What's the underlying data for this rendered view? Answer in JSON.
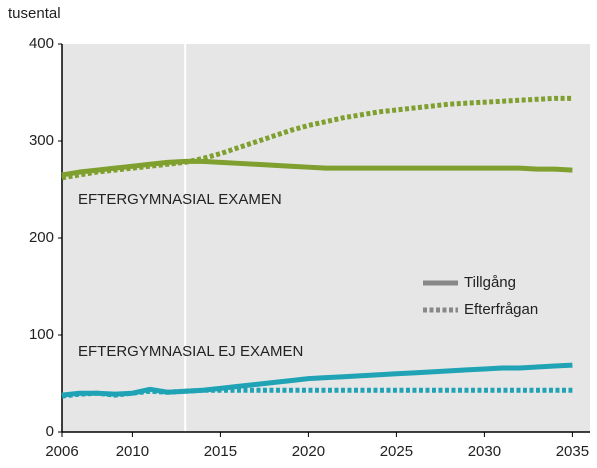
{
  "chart_data": {
    "type": "line",
    "y_label": "tusental",
    "x": [
      2006,
      2007,
      2008,
      2009,
      2010,
      2011,
      2012,
      2013,
      2014,
      2015,
      2016,
      2017,
      2018,
      2019,
      2020,
      2021,
      2022,
      2023,
      2024,
      2025,
      2026,
      2027,
      2028,
      2029,
      2030,
      2031,
      2032,
      2033,
      2034,
      2035
    ],
    "xlim": [
      2006,
      2036
    ],
    "xticks": [
      2006,
      2010,
      2015,
      2020,
      2025,
      2030,
      2035
    ],
    "ylim": [
      0,
      400
    ],
    "yticks": [
      0,
      100,
      200,
      300,
      400
    ],
    "divider_x": 2013,
    "legend": [
      {
        "name": "Tillgång",
        "style": "solid"
      },
      {
        "name": "Efterfrågan",
        "style": "dotted"
      }
    ],
    "legend_color": "#888888",
    "groups": [
      {
        "label": "EFTERGYMNASIAL EXAMEN",
        "color": "#7f9f2e",
        "series": [
          {
            "legend": 0,
            "values": [
              265,
              268,
              270,
              272,
              274,
              276,
              278,
              279,
              279,
              278,
              277,
              276,
              275,
              274,
              273,
              272,
              272,
              272,
              272,
              272,
              272,
              272,
              272,
              272,
              272,
              272,
              272,
              271,
              271,
              270
            ]
          },
          {
            "legend": 1,
            "values": [
              262,
              265,
              268,
              270,
              272,
              274,
              276,
              278,
              282,
              287,
              293,
              299,
              305,
              311,
              316,
              320,
              324,
              327,
              330,
              332,
              334,
              336,
              338,
              339,
              340,
              341,
              342,
              343,
              344,
              344
            ]
          }
        ]
      },
      {
        "label": "EFTERGYMNASIAL EJ EXAMEN",
        "color": "#1fa3b5",
        "series": [
          {
            "legend": 0,
            "values": [
              38,
              40,
              40,
              39,
              40,
              44,
              41,
              42,
              43,
              45,
              47,
              49,
              51,
              53,
              55,
              56,
              57,
              58,
              59,
              60,
              61,
              62,
              63,
              64,
              65,
              66,
              66,
              67,
              68,
              69
            ]
          },
          {
            "legend": 1,
            "values": [
              37,
              39,
              40,
              38,
              40,
              42,
              41,
              42,
              43,
              43,
              43,
              43,
              43,
              43,
              43,
              43,
              43,
              43,
              43,
              43,
              43,
              43,
              43,
              43,
              43,
              43,
              43,
              43,
              43,
              43
            ]
          }
        ]
      }
    ]
  }
}
